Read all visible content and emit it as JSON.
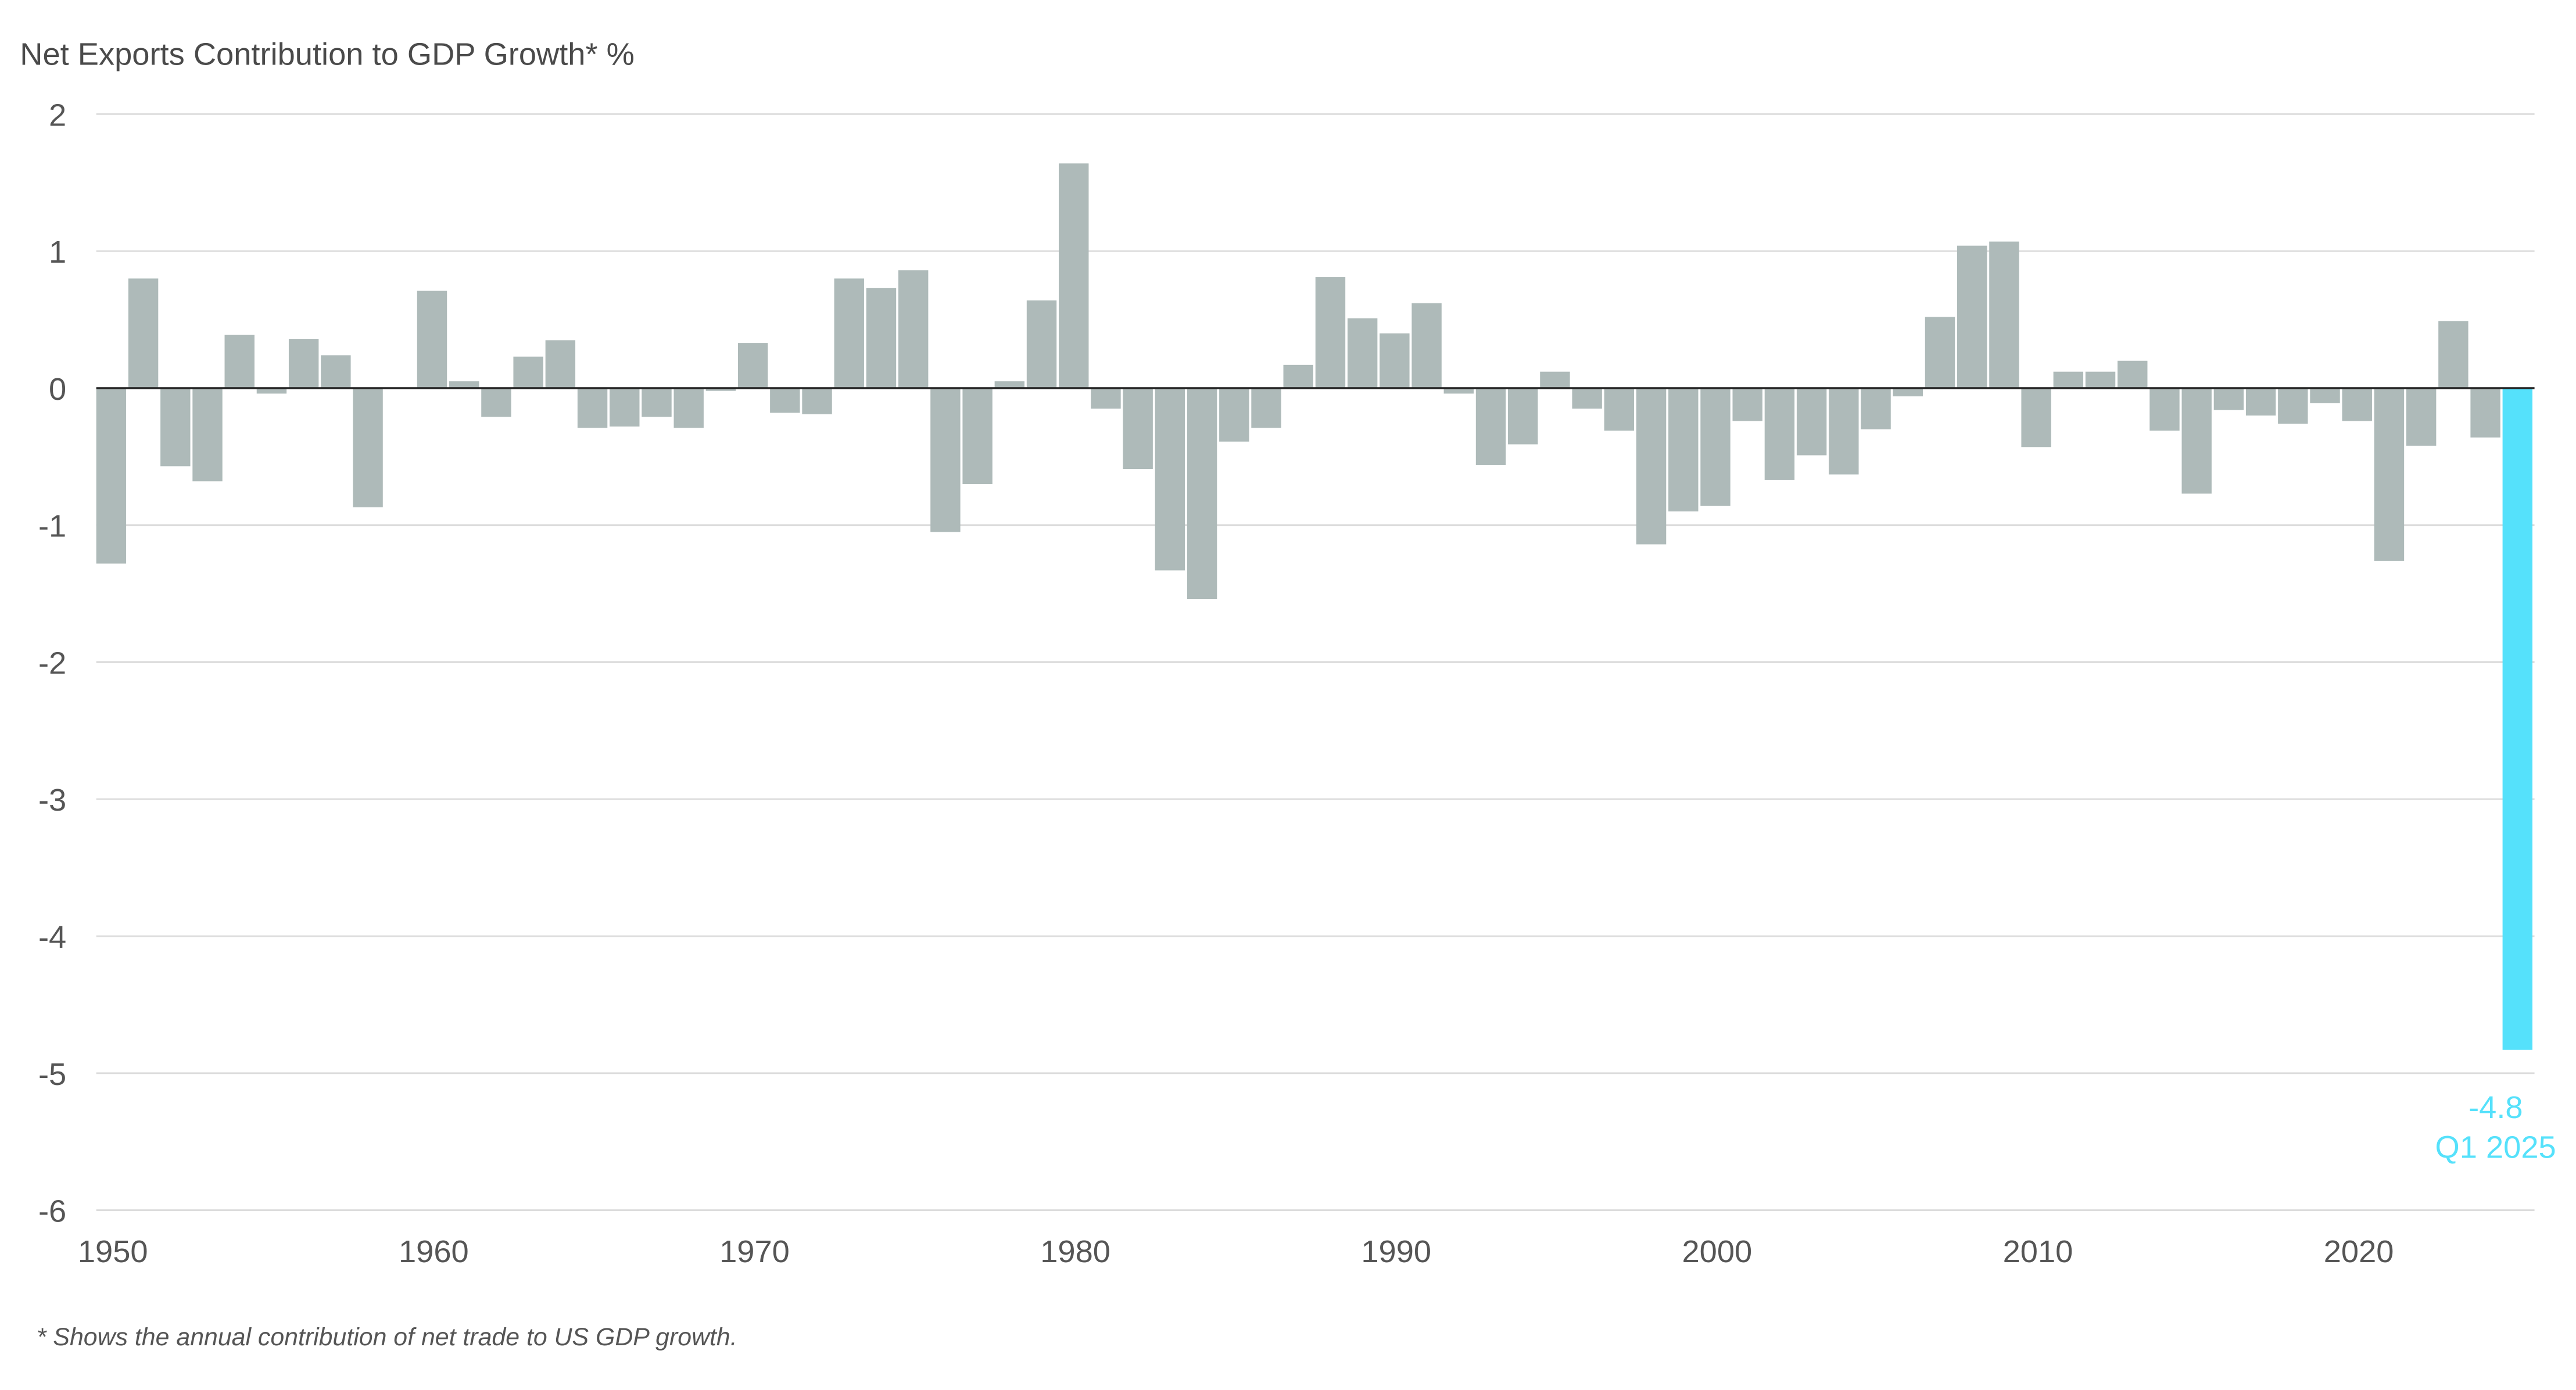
{
  "chart_data": {
    "type": "bar",
    "title": "Net Exports Contribution to GDP Growth* %",
    "xlabel": "",
    "ylabel": "%",
    "ylim": [
      -6,
      2
    ],
    "yticks": [
      "2",
      "1",
      "0",
      "-1",
      "-2",
      "-3",
      "-4",
      "-5",
      "-6"
    ],
    "ytick_values": [
      2,
      1,
      0,
      -1,
      -2,
      -3,
      -4,
      -5,
      -6
    ],
    "xticks": [
      "1950",
      "1960",
      "1970",
      "1980",
      "1990",
      "2000",
      "2010",
      "2020"
    ],
    "grid": true,
    "categories": [
      "1950",
      "1951",
      "1952",
      "1953",
      "1954",
      "1955",
      "1956",
      "1957",
      "1958",
      "1959",
      "1960",
      "1961",
      "1962",
      "1963",
      "1964",
      "1965",
      "1966",
      "1967",
      "1968",
      "1969",
      "1970",
      "1971",
      "1972",
      "1973",
      "1974",
      "1975",
      "1976",
      "1977",
      "1978",
      "1979",
      "1980",
      "1981",
      "1982",
      "1983",
      "1984",
      "1985",
      "1986",
      "1987",
      "1988",
      "1989",
      "1990",
      "1991",
      "1992",
      "1993",
      "1994",
      "1995",
      "1996",
      "1997",
      "1998",
      "1999",
      "2000",
      "2001",
      "2002",
      "2003",
      "2004",
      "2005",
      "2006",
      "2007",
      "2008",
      "2009",
      "2010",
      "2011",
      "2012",
      "2013",
      "2014",
      "2015",
      "2016",
      "2017",
      "2018",
      "2019",
      "2020",
      "2021",
      "2022",
      "2023",
      "2024",
      "Q1 2025"
    ],
    "values": [
      -1.28,
      0.8,
      -0.57,
      -0.68,
      0.39,
      -0.04,
      0.36,
      0.24,
      -0.87,
      0.0,
      0.71,
      0.05,
      -0.21,
      0.23,
      0.35,
      -0.29,
      -0.28,
      -0.21,
      -0.29,
      -0.02,
      0.33,
      -0.18,
      -0.19,
      0.8,
      0.73,
      0.86,
      -1.05,
      -0.7,
      0.05,
      0.64,
      1.64,
      -0.15,
      -0.59,
      -1.33,
      -1.54,
      -0.39,
      -0.29,
      0.17,
      0.81,
      0.51,
      0.4,
      0.62,
      -0.04,
      -0.56,
      -0.41,
      0.12,
      -0.15,
      -0.31,
      -1.14,
      -0.9,
      -0.86,
      -0.24,
      -0.67,
      -0.49,
      -0.63,
      -0.3,
      -0.06,
      0.52,
      1.04,
      1.07,
      -0.43,
      0.12,
      0.12,
      0.2,
      -0.31,
      -0.77,
      -0.16,
      -0.2,
      -0.26,
      -0.11,
      -0.24,
      -1.26,
      -0.42,
      0.49,
      -0.36,
      -4.83
    ],
    "highlight": {
      "category": "Q1 2025",
      "value_label": "-4.8",
      "label": "Q1 2025"
    },
    "colors": {
      "bar": "#aebab9",
      "highlight": "#55e1fb"
    },
    "footnote": "* Shows the annual contribution of net trade to US GDP growth."
  }
}
